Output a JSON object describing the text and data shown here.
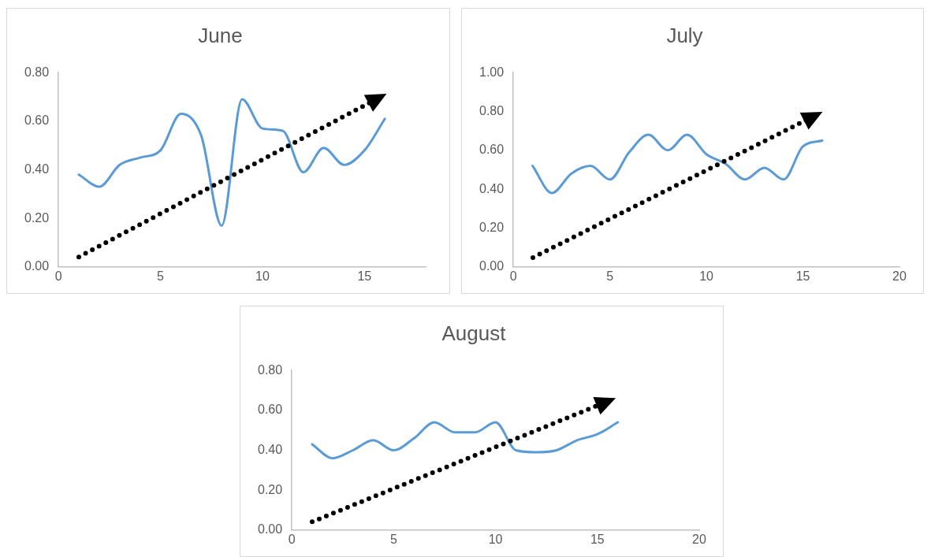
{
  "chart_data": [
    {
      "type": "line",
      "title": "June",
      "x": [
        1,
        2,
        3,
        4,
        5,
        6,
        7,
        8,
        9,
        10,
        11,
        12,
        13,
        14,
        15,
        16
      ],
      "xlim": [
        0,
        18
      ],
      "xticks": [
        0,
        5,
        10,
        15
      ],
      "ylim": [
        0,
        0.8
      ],
      "yticks": [
        {
          "value": 0,
          "label": "0.00"
        },
        {
          "value": 0.2,
          "label": "0.20"
        },
        {
          "value": 0.4,
          "label": "0.40"
        },
        {
          "value": 0.6,
          "label": "0.60"
        },
        {
          "value": 0.8,
          "label": "0.80"
        }
      ],
      "grid": false,
      "legend": false,
      "marker": "none",
      "line_style": "solid",
      "series": [
        {
          "color": "#5b9bd5",
          "values": [
            0.38,
            0.33,
            0.42,
            0.45,
            0.48,
            0.63,
            0.54,
            0.17,
            0.69,
            0.57,
            0.56,
            0.39,
            0.49,
            0.42,
            0.48,
            0.61
          ]
        }
      ]
    },
    {
      "type": "line",
      "title": "July",
      "x": [
        1,
        2,
        3,
        4,
        5,
        6,
        7,
        8,
        9,
        10,
        11,
        12,
        13,
        14,
        15,
        16
      ],
      "xlim": [
        0,
        20
      ],
      "xticks": [
        0,
        5,
        10,
        15,
        20
      ],
      "ylim": [
        0,
        1
      ],
      "yticks": [
        {
          "value": 0,
          "label": "0.00"
        },
        {
          "value": 0.2,
          "label": "0.20"
        },
        {
          "value": 0.4,
          "label": "0.40"
        },
        {
          "value": 0.6,
          "label": "0.60"
        },
        {
          "value": 0.8,
          "label": "0.80"
        },
        {
          "value": 1,
          "label": "1.00"
        }
      ],
      "grid": false,
      "legend": false,
      "marker": "none",
      "line_style": "solid",
      "series": [
        {
          "color": "#5b9bd5",
          "values": [
            0.52,
            0.38,
            0.48,
            0.52,
            0.45,
            0.59,
            0.68,
            0.6,
            0.68,
            0.58,
            0.53,
            0.45,
            0.51,
            0.45,
            0.62,
            0.65
          ]
        }
      ]
    },
    {
      "type": "line",
      "title": "August",
      "x": [
        1,
        2,
        3,
        4,
        5,
        6,
        7,
        8,
        9,
        10,
        11,
        12,
        13,
        14,
        15,
        16
      ],
      "xlim": [
        0,
        20
      ],
      "xticks": [
        0,
        5,
        10,
        15,
        20
      ],
      "ylim": [
        0,
        0.8
      ],
      "yticks": [
        {
          "value": 0,
          "label": "0.00"
        },
        {
          "value": 0.2,
          "label": "0.20"
        },
        {
          "value": 0.4,
          "label": "0.40"
        },
        {
          "value": 0.6,
          "label": "0.60"
        },
        {
          "value": 0.8,
          "label": "0.80"
        }
      ],
      "grid": false,
      "legend": false,
      "marker": "none",
      "line_style": "solid",
      "series": [
        {
          "color": "#5b9bd5",
          "values": [
            0.43,
            0.36,
            0.4,
            0.45,
            0.4,
            0.46,
            0.54,
            0.49,
            0.49,
            0.54,
            0.4,
            0.39,
            0.4,
            0.45,
            0.48,
            0.54
          ]
        }
      ]
    }
  ]
}
